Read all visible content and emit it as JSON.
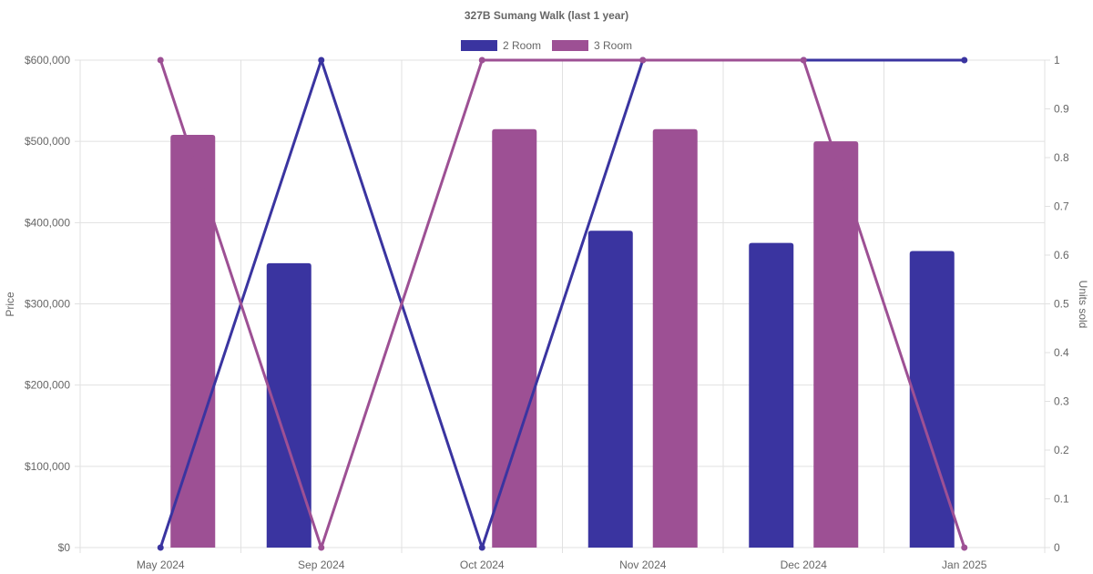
{
  "chart_data": {
    "type": "bar",
    "title": "327B Sumang Walk (last 1 year)",
    "categories": [
      "May 2024",
      "Sep 2024",
      "Oct 2024",
      "Nov 2024",
      "Dec 2024",
      "Jan 2025"
    ],
    "y_left": {
      "label": "Price",
      "ylim": [
        0,
        600000
      ],
      "ticks": [
        "$0",
        "$100,000",
        "$200,000",
        "$300,000",
        "$400,000",
        "$500,000",
        "$600,000"
      ]
    },
    "y_right": {
      "label": "Units sold",
      "ylim": [
        0,
        1
      ],
      "ticks": [
        "0",
        "0.1",
        "0.2",
        "0.3",
        "0.4",
        "0.5",
        "0.6",
        "0.7",
        "0.8",
        "0.9",
        "1"
      ]
    },
    "series": [
      {
        "name": "2 Room",
        "color": "#3a34a0",
        "price": [
          null,
          350000,
          null,
          390000,
          375000,
          365000
        ],
        "units": [
          0,
          1,
          0,
          1,
          1,
          1
        ]
      },
      {
        "name": "3 Room",
        "color": "#9d5094",
        "price": [
          508000,
          null,
          515000,
          515000,
          500000,
          null
        ],
        "units": [
          1,
          0,
          1,
          1,
          1,
          0
        ]
      }
    ],
    "legend": "top-center",
    "grid": true
  }
}
